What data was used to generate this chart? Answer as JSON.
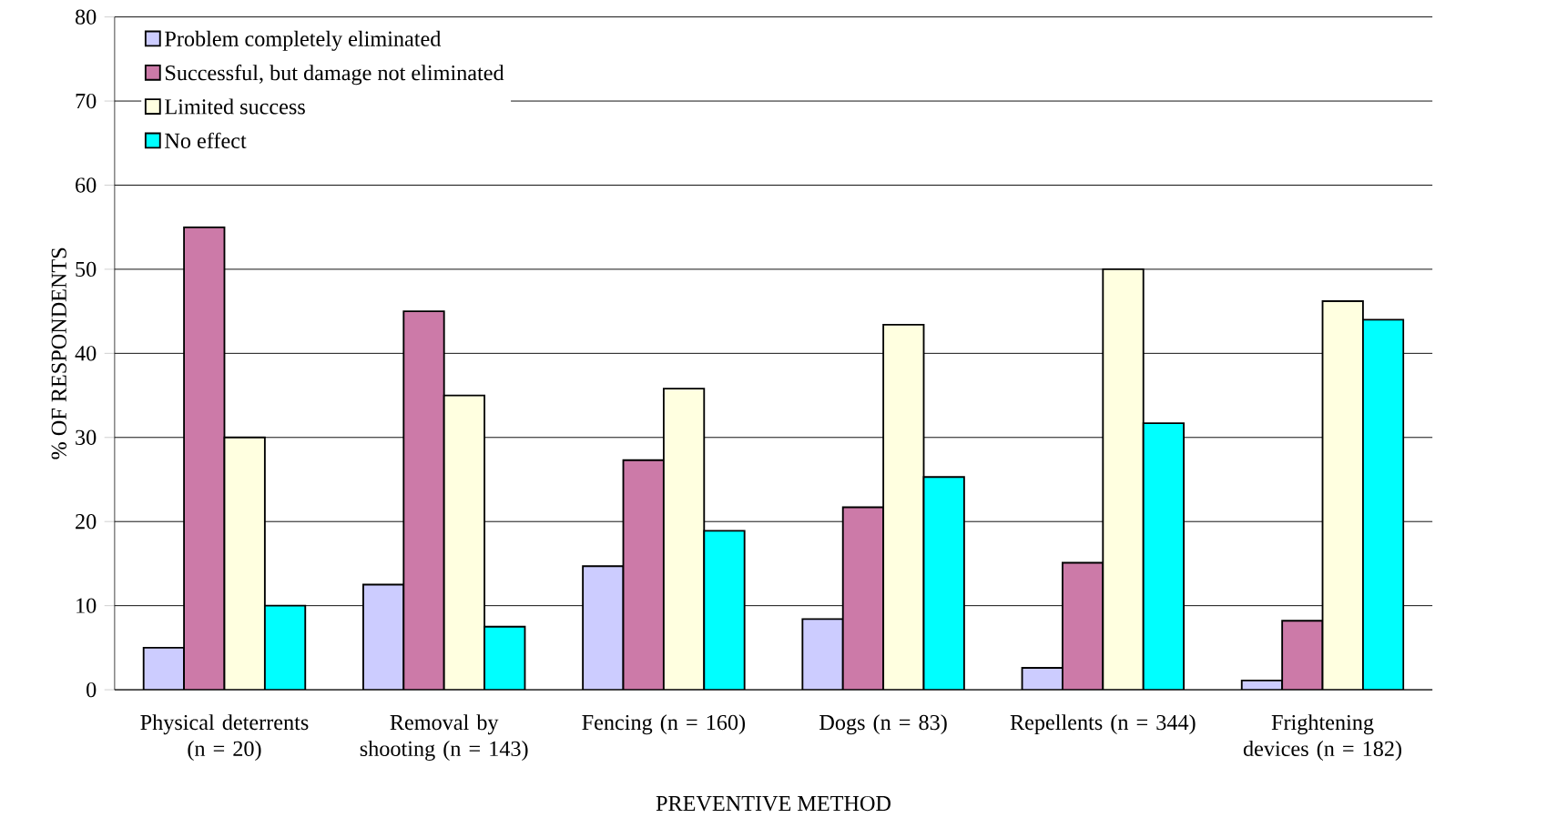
{
  "chart_data": {
    "type": "bar",
    "xlabel": "PREVENTIVE METHOD",
    "ylabel": "% OF RESPONDENTS",
    "categories": [
      "Physical deterrents (n = 20)",
      "Removal by shooting (n = 143)",
      "Fencing (n = 160)",
      "Dogs (n = 83)",
      "Repellents (n = 344)",
      "Frightening devices (n = 182)"
    ],
    "series": [
      {
        "name": "Problem completely eliminated",
        "color": "#ccccff",
        "values": [
          5,
          12.5,
          14.7,
          8.4,
          2.6,
          1.1
        ]
      },
      {
        "name": "Successful, but damage not eliminated",
        "color": "#cc7aa8",
        "values": [
          55,
          45,
          27.3,
          21.7,
          15.1,
          8.2
        ]
      },
      {
        "name": "Limited success",
        "color": "#ffffe0",
        "values": [
          30,
          35,
          35.8,
          43.4,
          50,
          46.2
        ]
      },
      {
        "name": "No effect",
        "color": "#00ffff",
        "values": [
          10,
          7.5,
          18.9,
          25.3,
          31.7,
          44
        ]
      }
    ],
    "ylim": [
      0,
      80
    ],
    "yticks": [
      0,
      10,
      20,
      30,
      40,
      50,
      60,
      70,
      80
    ],
    "grid": "y",
    "legend": "top left"
  }
}
